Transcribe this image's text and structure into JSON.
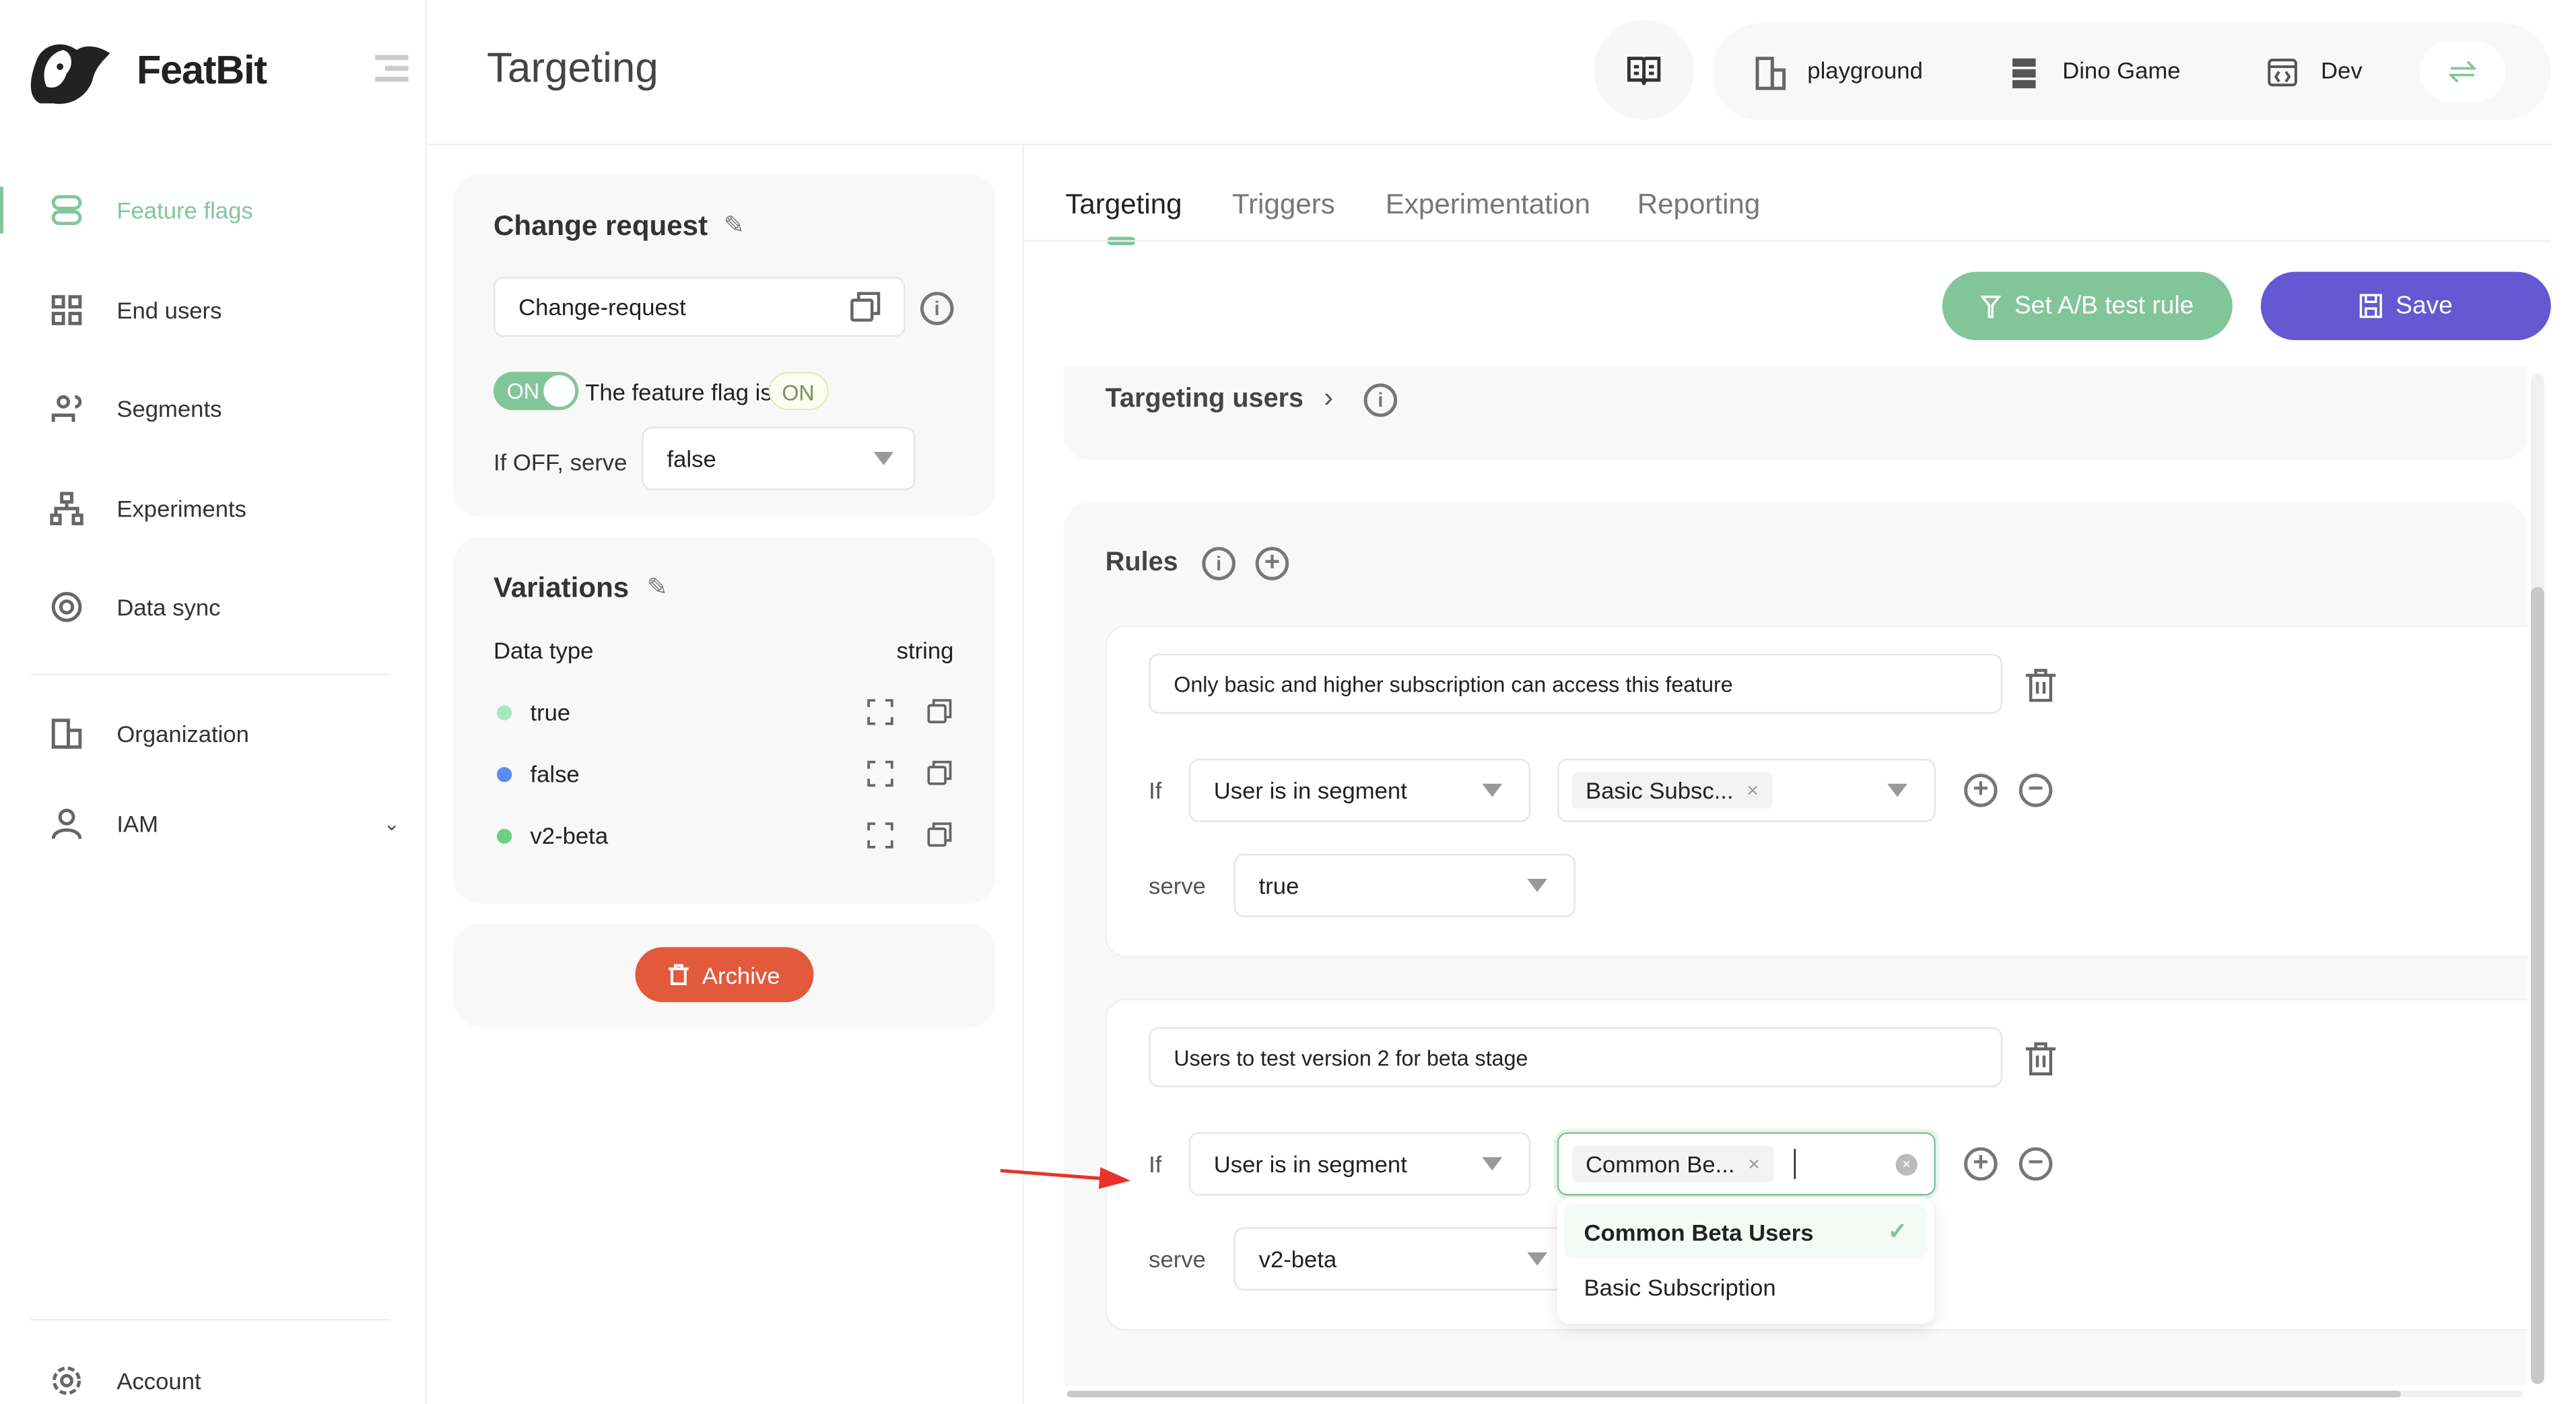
{
  "brand": {
    "name": "FeatBit"
  },
  "header": {
    "title": "Targeting",
    "org": "playground",
    "project": "Dino Game",
    "env": "Dev"
  },
  "sidebar": {
    "items": [
      {
        "label": "Feature flags",
        "icon": "toggle-icon",
        "active": true
      },
      {
        "label": "End users",
        "icon": "grid-icon"
      },
      {
        "label": "Segments",
        "icon": "users-icon"
      },
      {
        "label": "Experiments",
        "icon": "hierarchy-icon"
      },
      {
        "label": "Data sync",
        "icon": "sync-icon"
      },
      {
        "label": "Organization",
        "icon": "building-icon"
      },
      {
        "label": "IAM",
        "icon": "user-icon"
      }
    ],
    "account": "Account"
  },
  "colors": {
    "accent": "#83c59a",
    "primary": "#6657d3",
    "danger": "#e25a3b"
  },
  "change_request": {
    "title": "Change request",
    "key": "Change-request",
    "toggle": "ON",
    "status_text": "The feature flag is",
    "status_badge": "ON",
    "off_label": "If OFF, serve",
    "off_value": "false"
  },
  "variations": {
    "title": "Variations",
    "data_type_label": "Data type",
    "data_type": "string",
    "items": [
      {
        "name": "true",
        "color": "#a8e6c3"
      },
      {
        "name": "false",
        "color": "#5b8def"
      },
      {
        "name": "v2-beta",
        "color": "#6cd07e"
      }
    ]
  },
  "archive": "Archive",
  "tabs": [
    "Targeting",
    "Triggers",
    "Experimentation",
    "Reporting"
  ],
  "actions": {
    "ab": "Set A/B test rule",
    "save": "Save"
  },
  "targeting_users": "Targeting users",
  "rules": {
    "title": "Rules",
    "if": "If",
    "serve": "serve",
    "items": [
      {
        "name": "Only basic and higher subscription can access this feature",
        "op": "User is in segment",
        "value": "Basic Subsc...",
        "serve": "true"
      },
      {
        "name": "Users to test version 2 for beta stage",
        "op": "User is in segment",
        "value": "Common Be...",
        "serve": "v2-beta"
      }
    ]
  },
  "dropdown": {
    "options": [
      {
        "label": "Common Beta Users",
        "selected": true
      },
      {
        "label": "Basic Subscription",
        "selected": false
      }
    ]
  }
}
